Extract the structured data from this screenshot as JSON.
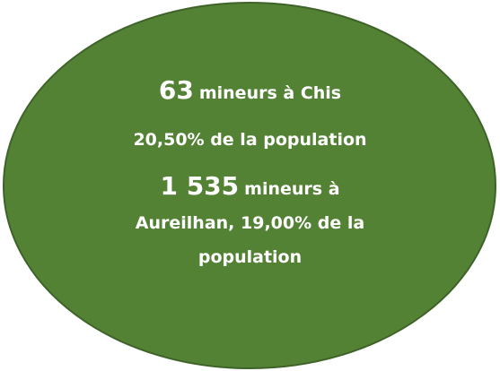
{
  "lines": [
    {
      "number": "63",
      "text": "mineurs à Chis"
    },
    {
      "text": "20,50% de la population"
    },
    {
      "number": "1 535",
      "text": "mineurs à Aureilhan, 19,00% de la population"
    }
  ]
}
